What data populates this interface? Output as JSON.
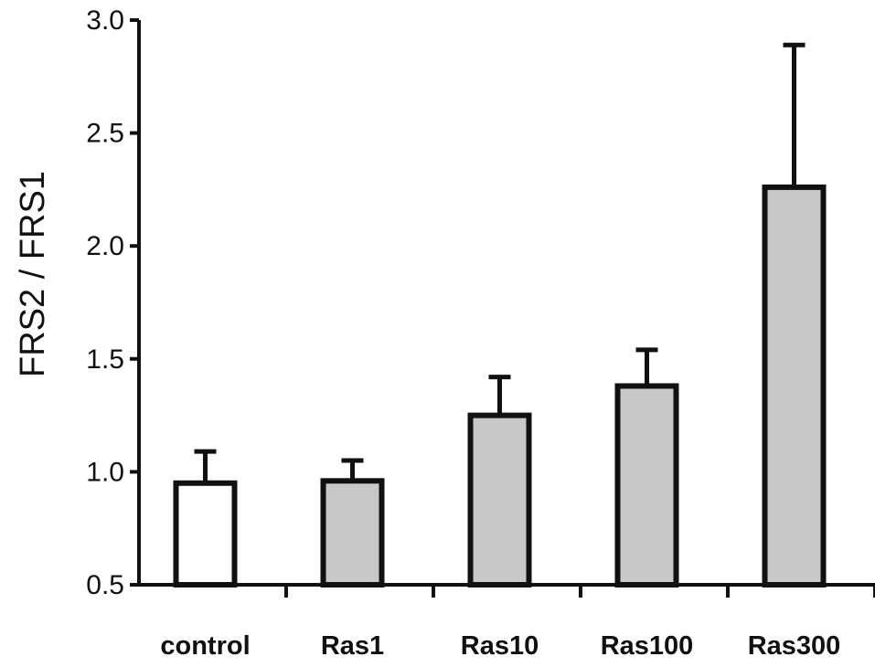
{
  "chart_data": {
    "type": "bar",
    "title": "",
    "xlabel": "",
    "ylabel": "FRS2 / FRS1",
    "categories": [
      "control",
      "Ras1",
      "Ras10",
      "Ras100",
      "Ras300"
    ],
    "values": [
      0.95,
      0.96,
      1.25,
      1.38,
      2.26
    ],
    "error_upper": [
      1.09,
      1.05,
      1.42,
      1.54,
      2.89
    ],
    "ylim": [
      0.5,
      3.0
    ],
    "yticks": [
      "0.5",
      "1.0",
      "1.5",
      "2.0",
      "2.5",
      "3.0"
    ],
    "grid": false,
    "legend": "none",
    "colors": {
      "control_fill": "#ffffff",
      "treated_fill": "#c8c8c8",
      "outline": "#111111"
    }
  }
}
